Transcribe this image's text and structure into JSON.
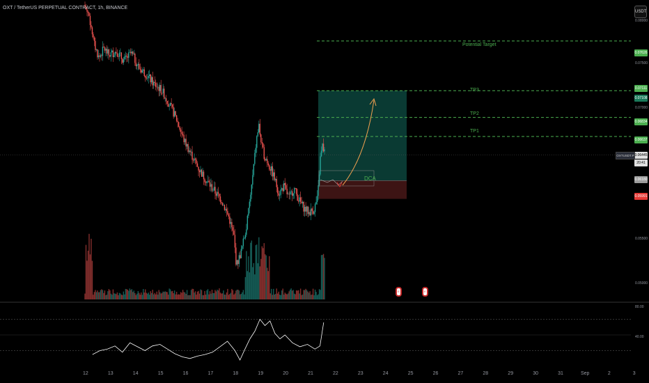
{
  "header": {
    "title": "OXT / TetherUS PERPETUAL CONTRACT, 1h, BINANCE",
    "currency_button": "USDT"
  },
  "annotations": {
    "potential_target": "Potential Target",
    "tp3": "TP3",
    "tp2": "TP2",
    "tp1": "TP1",
    "dca": "DCA"
  },
  "price_tags": {
    "potential_target": "0.07626",
    "tp3": "0.07111",
    "entry_top": "0.07108",
    "tp2": "0.06834",
    "tp1": "0.06637",
    "current": "0.06445",
    "countdown": "20:41",
    "entry": "0.06180",
    "stop": "0.05991",
    "symbol": "OXTUSDT.P"
  },
  "price_axis_labels": [
    "0.08000",
    "0.07500",
    "0.07000",
    "0.05500",
    "0.05000"
  ],
  "rsi_axis_labels": [
    "80.00",
    "40.00"
  ],
  "colors": {
    "up": "#26a69a",
    "down": "#ef5350",
    "target_line": "#4caf50",
    "target_zone": "#0a3a33",
    "stop_zone": "#3d1414",
    "rsi_line": "#ffffff",
    "arrow": "#f0a050"
  },
  "chart_data": {
    "type": "candlestick",
    "title": "OXT / TetherUS PERPETUAL CONTRACT, 1h, BINANCE",
    "x_tick_labels": [
      "12",
      "13",
      "14",
      "15",
      "16",
      "17",
      "18",
      "19",
      "20",
      "21",
      "22",
      "23",
      "24",
      "25",
      "26",
      "27",
      "28",
      "29",
      "30",
      "31",
      "Sep",
      "2",
      "3"
    ],
    "y_range": [
      0.0495,
      0.0805
    ],
    "price_levels": {
      "potential_target": 0.07626,
      "tp3": 0.07111,
      "tp2": 0.06834,
      "tp1": 0.06637,
      "current": 0.06445,
      "entry": 0.0618,
      "stop": 0.05991
    },
    "price_path": [
      [
        12.0,
        0.08
      ],
      [
        12.2,
        0.079
      ],
      [
        12.4,
        0.076
      ],
      [
        12.6,
        0.0745
      ],
      [
        12.8,
        0.0755
      ],
      [
        13.0,
        0.0748
      ],
      [
        13.3,
        0.0752
      ],
      [
        13.6,
        0.0742
      ],
      [
        13.9,
        0.075
      ],
      [
        14.2,
        0.0735
      ],
      [
        14.5,
        0.0728
      ],
      [
        14.8,
        0.0718
      ],
      [
        15.1,
        0.0712
      ],
      [
        15.4,
        0.0698
      ],
      [
        15.7,
        0.0682
      ],
      [
        16.0,
        0.066
      ],
      [
        16.3,
        0.0645
      ],
      [
        16.6,
        0.063
      ],
      [
        16.9,
        0.0618
      ],
      [
        17.2,
        0.0608
      ],
      [
        17.5,
        0.0598
      ],
      [
        17.8,
        0.058
      ],
      [
        18.0,
        0.056
      ],
      [
        18.1,
        0.053
      ],
      [
        18.3,
        0.0545
      ],
      [
        18.5,
        0.057
      ],
      [
        18.7,
        0.061
      ],
      [
        18.9,
        0.066
      ],
      [
        19.0,
        0.0675
      ],
      [
        19.1,
        0.0655
      ],
      [
        19.2,
        0.0645
      ],
      [
        19.4,
        0.0635
      ],
      [
        19.6,
        0.0622
      ],
      [
        19.8,
        0.0605
      ],
      [
        20.0,
        0.0612
      ],
      [
        20.2,
        0.06
      ],
      [
        20.4,
        0.061
      ],
      [
        20.6,
        0.0598
      ],
      [
        20.8,
        0.059
      ],
      [
        21.0,
        0.0585
      ],
      [
        21.2,
        0.0588
      ],
      [
        21.35,
        0.06
      ],
      [
        21.45,
        0.064
      ],
      [
        21.55,
        0.0655
      ],
      [
        21.6,
        0.0648
      ]
    ],
    "volume_histogram": "relative bars, spikes near 12, 18.5-19.3 and 21.5",
    "rsi": {
      "y_range": [
        20,
        100
      ],
      "levels": [
        80,
        40
      ],
      "path": [
        [
          12.3,
          35
        ],
        [
          12.6,
          40
        ],
        [
          12.9,
          42
        ],
        [
          13.2,
          46
        ],
        [
          13.5,
          38
        ],
        [
          13.8,
          50
        ],
        [
          14.1,
          45
        ],
        [
          14.4,
          40
        ],
        [
          14.7,
          46
        ],
        [
          15.0,
          48
        ],
        [
          15.3,
          42
        ],
        [
          15.6,
          36
        ],
        [
          15.9,
          32
        ],
        [
          16.2,
          30
        ],
        [
          16.5,
          33
        ],
        [
          16.8,
          35
        ],
        [
          17.1,
          38
        ],
        [
          17.4,
          45
        ],
        [
          17.7,
          52
        ],
        [
          18.0,
          40
        ],
        [
          18.2,
          28
        ],
        [
          18.4,
          42
        ],
        [
          18.6,
          55
        ],
        [
          18.8,
          65
        ],
        [
          19.0,
          80
        ],
        [
          19.2,
          72
        ],
        [
          19.4,
          78
        ],
        [
          19.6,
          62
        ],
        [
          19.8,
          55
        ],
        [
          20.0,
          60
        ],
        [
          20.3,
          50
        ],
        [
          20.6,
          45
        ],
        [
          20.9,
          48
        ],
        [
          21.2,
          42
        ],
        [
          21.4,
          46
        ],
        [
          21.55,
          76
        ]
      ]
    }
  }
}
